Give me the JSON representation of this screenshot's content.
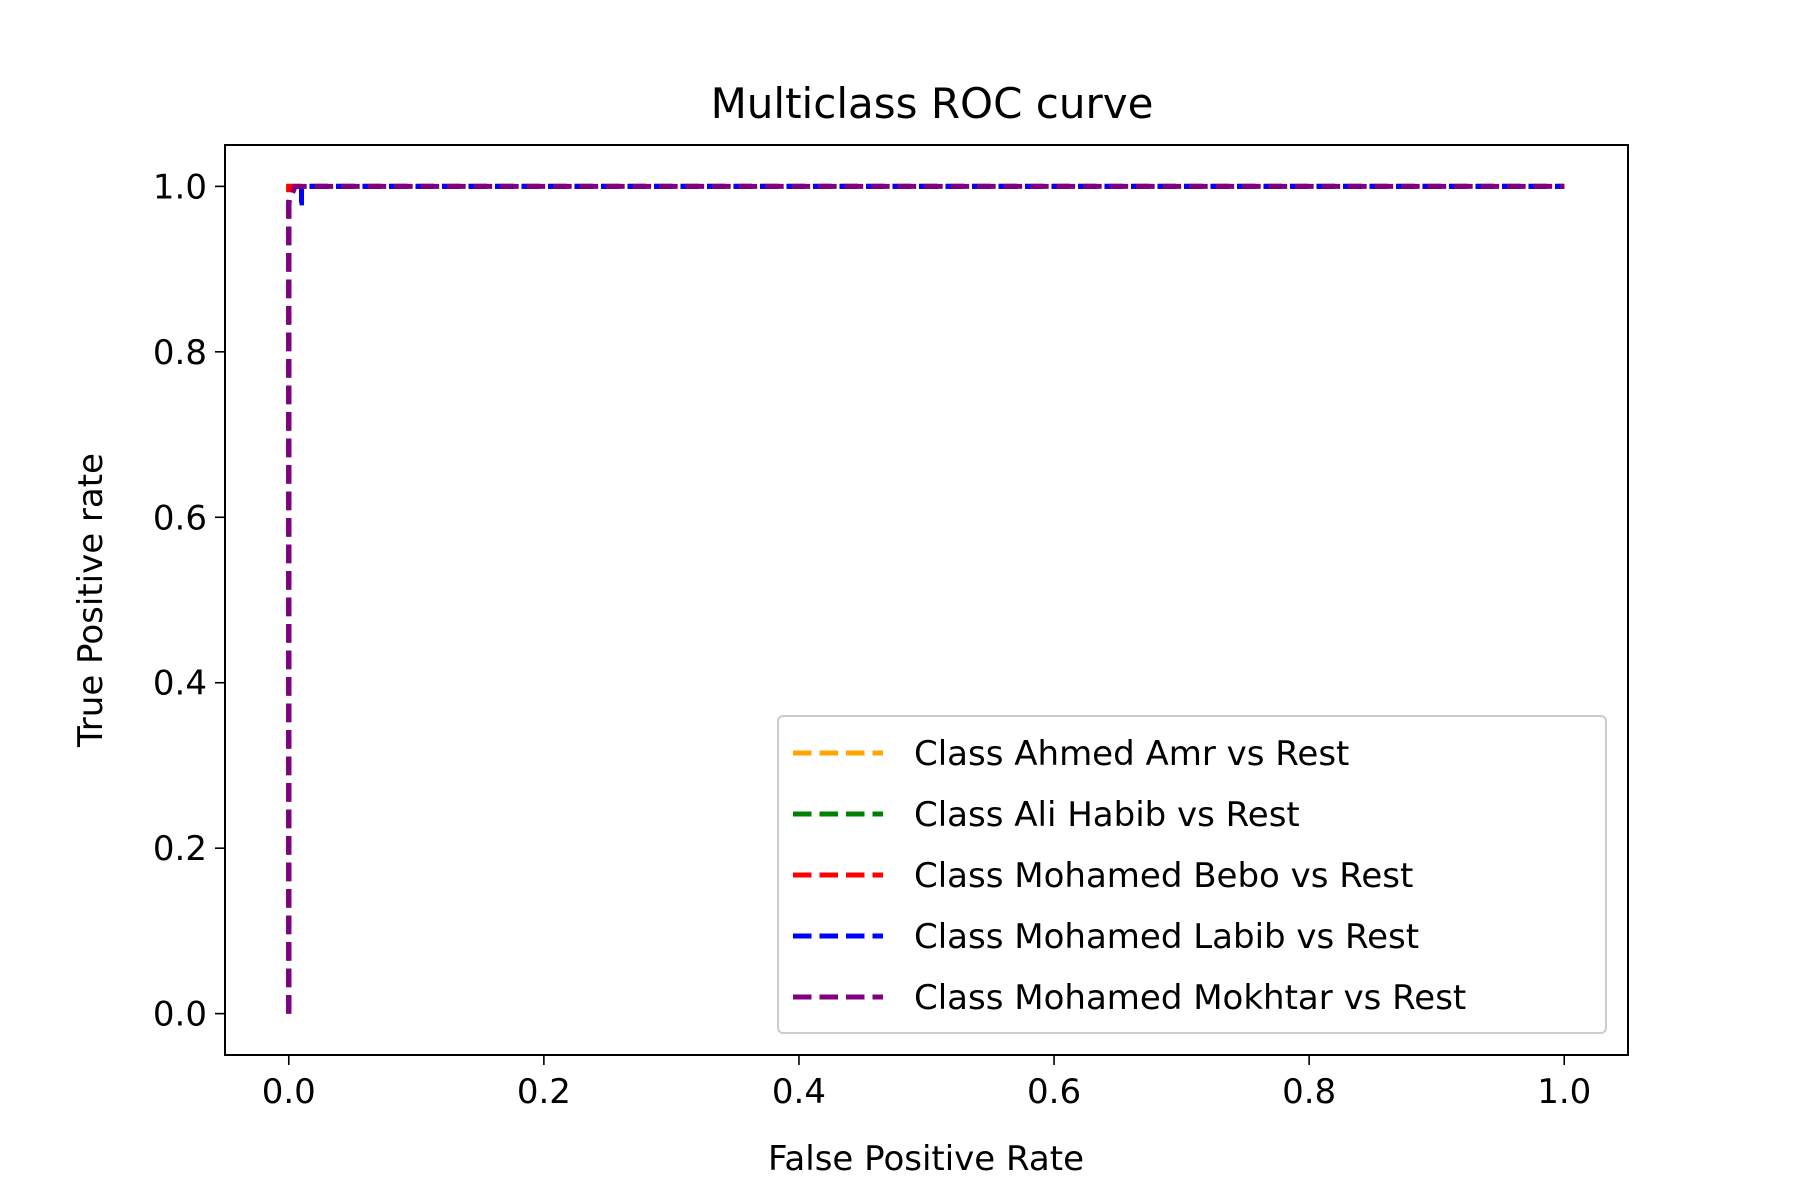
{
  "chart_data": {
    "type": "line",
    "title": "Multiclass ROC curve",
    "xlabel": "False Positive Rate",
    "ylabel": "True Positive rate",
    "xlim": [
      -0.05,
      1.05
    ],
    "ylim": [
      -0.05,
      1.05
    ],
    "xticks": [
      "0.0",
      "0.2",
      "0.4",
      "0.6",
      "0.8",
      "1.0"
    ],
    "yticks": [
      "0.0",
      "0.2",
      "0.4",
      "0.6",
      "0.8",
      "1.0"
    ],
    "grid": false,
    "legend_position": "lower-right",
    "line_style": "dashed",
    "series": [
      {
        "name": "Class Ahmed Amr vs Rest",
        "color": "#FFA500",
        "x": [
          0.0,
          0.0,
          0.0,
          1.0
        ],
        "y": [
          0.0,
          0.98,
          1.0,
          1.0
        ]
      },
      {
        "name": "Class Ali Habib vs Rest",
        "color": "#008000",
        "x": [
          0.0,
          0.0,
          0.0,
          1.0
        ],
        "y": [
          0.0,
          0.98,
          1.0,
          1.0
        ]
      },
      {
        "name": "Class Mohamed Bebo vs Rest",
        "color": "#FF0000",
        "x": [
          0.0,
          0.0,
          0.0,
          1.0
        ],
        "y": [
          0.0,
          0.98,
          1.0,
          1.0
        ]
      },
      {
        "name": "Class Mohamed Labib vs Rest",
        "color": "#0000FF",
        "x": [
          0.0,
          0.0,
          0.01,
          0.01,
          1.0
        ],
        "y": [
          0.0,
          0.98,
          0.98,
          1.0,
          1.0
        ]
      },
      {
        "name": "Class Mohamed Mokhtar vs Rest",
        "color": "#800080",
        "x": [
          0.0,
          0.0,
          0.005,
          1.0
        ],
        "y": [
          0.0,
          0.98,
          1.0,
          1.0
        ]
      }
    ]
  }
}
